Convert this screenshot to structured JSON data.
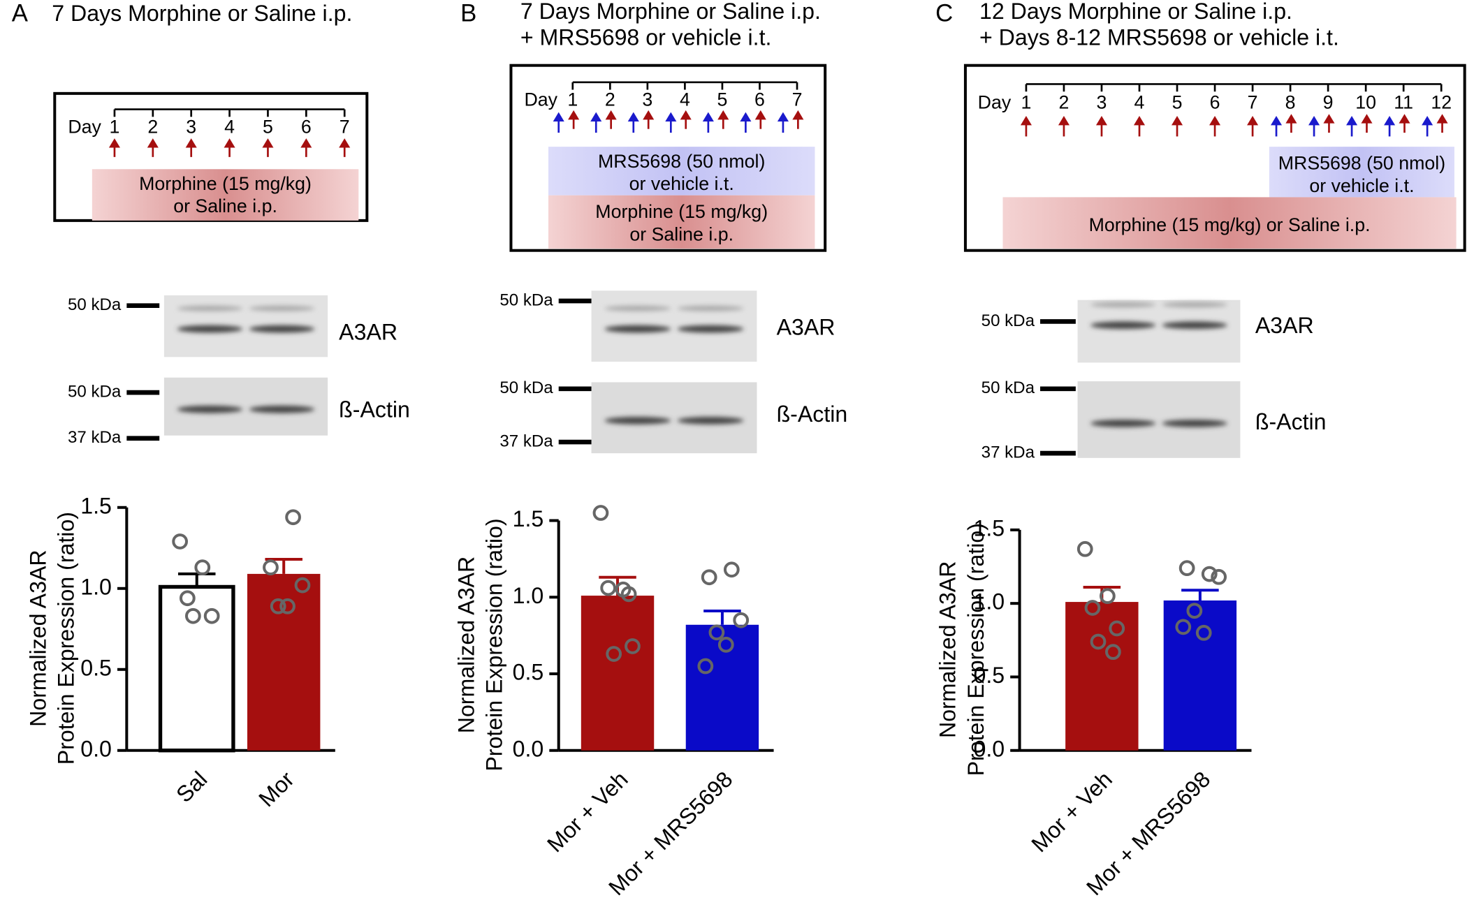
{
  "panels": [
    {
      "letter": "A",
      "title": [
        "7 Days Morphine or Saline i.p."
      ],
      "day_label": "Day",
      "days": [
        1,
        2,
        3,
        4,
        5,
        6,
        7
      ],
      "morphine_label": [
        "Morphine (15 mg/kg)",
        "or Saline i.p."
      ],
      "blots": [
        {
          "name": "A3AR",
          "markers": [
            "50 kDa"
          ]
        },
        {
          "name": "ß-Actin",
          "markers": [
            "50 kDa",
            "37 kDa"
          ]
        }
      ]
    },
    {
      "letter": "B",
      "title": [
        "7 Days Morphine or Saline i.p.",
        "+ MRS5698 or vehicle i.t."
      ],
      "day_label": "Day",
      "days": [
        1,
        2,
        3,
        4,
        5,
        6,
        7
      ],
      "mrs_label": [
        "MRS5698 (50 nmol)",
        "or vehicle i.t."
      ],
      "morphine_label": [
        "Morphine (15 mg/kg)",
        "or Saline i.p."
      ],
      "blots": [
        {
          "name": "A3AR",
          "markers": [
            "50 kDa"
          ]
        },
        {
          "name": "ß-Actin",
          "markers": [
            "50 kDa",
            "37 kDa"
          ]
        }
      ]
    },
    {
      "letter": "C",
      "title": [
        "12 Days Morphine or Saline i.p.",
        "+ Days 8-12 MRS5698 or vehicle i.t."
      ],
      "day_label": "Day",
      "days": [
        1,
        2,
        3,
        4,
        5,
        6,
        7,
        8,
        9,
        10,
        11,
        12
      ],
      "mrs_label": [
        "MRS5698 (50 nmol)",
        "or vehicle i.t."
      ],
      "morphine_label": [
        "Morphine (15 mg/kg) or Saline i.p."
      ],
      "blots": [
        {
          "name": "A3AR",
          "markers": [
            "50 kDa"
          ]
        },
        {
          "name": "ß-Actin",
          "markers": [
            "50 kDa",
            "37 kDa"
          ]
        }
      ]
    }
  ],
  "chart_data": [
    {
      "type": "bar",
      "ylabel": [
        "Normalized A3AR",
        "Protein Expression (ratio)"
      ],
      "categories": [
        "Sal",
        "Mor"
      ],
      "values": [
        1.01,
        1.09
      ],
      "errors": [
        0.08,
        0.09
      ],
      "points": [
        [
          1.29,
          1.13,
          0.94,
          0.83,
          0.83
        ],
        [
          1.44,
          1.13,
          1.02,
          0.89,
          0.89
        ]
      ],
      "colors": [
        "#ffffff",
        "#a50f0f"
      ],
      "edgecolors": [
        "#000000",
        "#a50f0f"
      ],
      "ylim": [
        0,
        1.5
      ],
      "yticks": [
        {
          "value": 0,
          "label": "0.0"
        },
        0.5,
        {
          "value": 1,
          "label": "1.0"
        },
        1.5
      ]
    },
    {
      "type": "bar",
      "ylabel": [
        "Normalized A3AR",
        "Protein Expression (ratio)"
      ],
      "categories": [
        "Mor + Veh",
        "Mor + MRS5698"
      ],
      "values": [
        1.01,
        0.82
      ],
      "errors": [
        0.12,
        0.09
      ],
      "points": [
        [
          1.55,
          1.05,
          1.06,
          0.68,
          0.63,
          1.02
        ],
        [
          1.18,
          1.13,
          0.85,
          0.77,
          0.69,
          0.55
        ]
      ],
      "colors": [
        "#a50f0f",
        "#0a0ac8"
      ],
      "edgecolors": [
        "#a50f0f",
        "#0a0ac8"
      ],
      "ylim": [
        0,
        1.5
      ],
      "yticks": [
        {
          "value": 0,
          "label": "0.0"
        },
        0.5,
        {
          "value": 1,
          "label": "1.0"
        },
        1.5
      ]
    },
    {
      "type": "bar",
      "ylabel": [
        "Normalized A3AR",
        "Protein Expression (ratio)"
      ],
      "categories": [
        "Mor + Veh",
        "Mor + MRS5698"
      ],
      "values": [
        1.01,
        1.02
      ],
      "errors": [
        0.1,
        0.07
      ],
      "points": [
        [
          1.37,
          1.05,
          0.97,
          0.83,
          0.74,
          0.67
        ],
        [
          1.2,
          1.24,
          1.18,
          0.95,
          0.8,
          0.84
        ]
      ],
      "colors": [
        "#a50f0f",
        "#0a0ac8"
      ],
      "edgecolors": [
        "#a50f0f",
        "#0a0ac8"
      ],
      "ylim": [
        0,
        1.5
      ],
      "yticks": [
        {
          "value": 0,
          "label": "0.0"
        },
        0.5,
        {
          "value": 1,
          "label": "1.0"
        },
        1.5
      ]
    }
  ]
}
